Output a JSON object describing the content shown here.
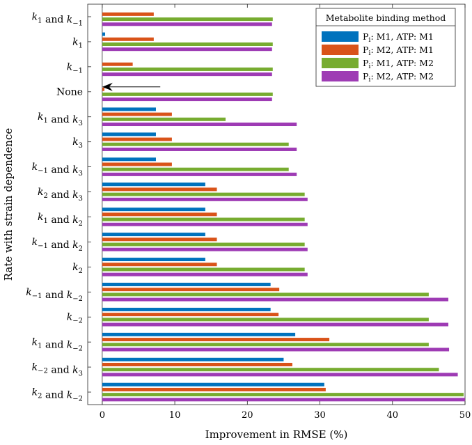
{
  "chart_data": {
    "type": "bar",
    "orientation": "horizontal",
    "title": "",
    "xlabel": "Improvement in RMSE (%)",
    "ylabel": "Rate with strain dependence",
    "xlim": [
      -2,
      50
    ],
    "xticks": [
      "0",
      "10",
      "20",
      "30",
      "40",
      "50"
    ],
    "xtick_values": [
      0,
      10,
      20,
      30,
      40,
      50
    ],
    "categories": [
      "k1 and k−1",
      "k1",
      "k−1",
      "None",
      "k1 and k3",
      "k3",
      "k−1 and k3",
      "k2 and k3",
      "k1 and k2",
      "k−1 and k2",
      "k2",
      "k−1 and k−2",
      "k−2",
      "k1 and k−2",
      "k−2 and k3",
      "k2 and k−2"
    ],
    "category_parts": [
      [
        [
          "k",
          "1"
        ],
        [
          " and "
        ],
        [
          "k",
          "−1"
        ]
      ],
      [
        [
          "k",
          "1"
        ]
      ],
      [
        [
          "k",
          "−1"
        ]
      ],
      [
        [
          "None"
        ]
      ],
      [
        [
          "k",
          "1"
        ],
        [
          " and "
        ],
        [
          "k",
          "3"
        ]
      ],
      [
        [
          "k",
          "3"
        ]
      ],
      [
        [
          "k",
          "−1"
        ],
        [
          " and "
        ],
        [
          "k",
          "3"
        ]
      ],
      [
        [
          "k",
          "2"
        ],
        [
          " and "
        ],
        [
          "k",
          "3"
        ]
      ],
      [
        [
          "k",
          "1"
        ],
        [
          " and "
        ],
        [
          "k",
          "2"
        ]
      ],
      [
        [
          "k",
          "−1"
        ],
        [
          " and "
        ],
        [
          "k",
          "2"
        ]
      ],
      [
        [
          "k",
          "2"
        ]
      ],
      [
        [
          "k",
          "−1"
        ],
        [
          " and "
        ],
        [
          "k",
          "−2"
        ]
      ],
      [
        [
          "k",
          "−2"
        ]
      ],
      [
        [
          "k",
          "1"
        ],
        [
          " and "
        ],
        [
          "k",
          "−2"
        ]
      ],
      [
        [
          "k",
          "−2"
        ],
        [
          " and "
        ],
        [
          "k",
          "3"
        ]
      ],
      [
        [
          "k",
          "2"
        ],
        [
          " and "
        ],
        [
          "k",
          "−2"
        ]
      ]
    ],
    "series": [
      {
        "name": "Pi: M1, ATP: M1",
        "color": "#0072bd",
        "values": [
          0,
          0.4,
          0,
          0,
          7.4,
          7.4,
          7.4,
          14.2,
          14.2,
          14.2,
          14.2,
          23.2,
          23.2,
          26.6,
          25.0,
          30.6
        ]
      },
      {
        "name": "Pi: M2, ATP: M1",
        "color": "#d95319",
        "values": [
          7.1,
          7.1,
          4.2,
          0.3,
          9.6,
          9.6,
          9.6,
          15.8,
          15.8,
          15.8,
          15.8,
          24.4,
          24.3,
          31.3,
          26.2,
          30.8
        ]
      },
      {
        "name": "Pi: M1, ATP: M2",
        "color": "#77ac30",
        "values": [
          23.5,
          23.5,
          23.5,
          23.5,
          17.0,
          25.7,
          25.7,
          27.9,
          27.9,
          27.9,
          27.9,
          45.0,
          45.0,
          45.0,
          46.4,
          49.8
        ]
      },
      {
        "name": "Pi: M2, ATP: M2",
        "color": "#9e3bb4",
        "values": [
          23.4,
          23.4,
          23.4,
          23.4,
          26.8,
          26.8,
          26.8,
          28.3,
          28.3,
          28.3,
          28.3,
          47.7,
          47.7,
          47.8,
          49.0,
          50.0
        ]
      }
    ],
    "legend": {
      "title": "Metabolite binding method",
      "position": "top-right",
      "entries": [
        {
          "main": "P",
          "sub": "i",
          "rest": ": M1, ATP: M1"
        },
        {
          "main": "P",
          "sub": "i",
          "rest": ": M2, ATP: M1"
        },
        {
          "main": "P",
          "sub": "i",
          "rest": ": M1, ATP: M2"
        },
        {
          "main": "P",
          "sub": "i",
          "rest": ": M2, ATP: M2"
        }
      ]
    },
    "annotation": {
      "type": "arrow",
      "category": "None",
      "from_x": 8,
      "to_x": 0
    }
  }
}
